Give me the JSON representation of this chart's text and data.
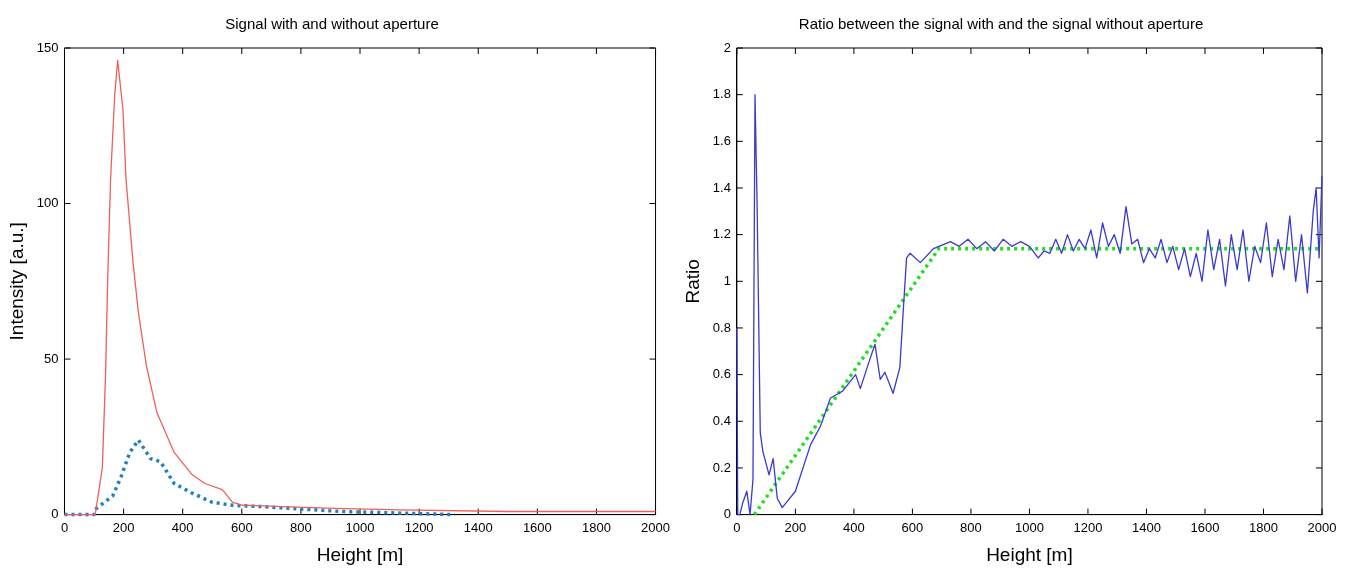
{
  "chart_data": [
    {
      "type": "line",
      "title": "Signal with and without aperture",
      "xlabel": "Height [m]",
      "ylabel": "Intensity [a.u.]",
      "xlim": [
        0,
        2000
      ],
      "ylim": [
        0,
        150
      ],
      "xticks": [
        0,
        200,
        400,
        600,
        800,
        1000,
        1200,
        1400,
        1600,
        1800,
        2000
      ],
      "yticks": [
        0,
        50,
        100,
        150
      ],
      "grid": false,
      "legend": false,
      "marker": "none",
      "series": [
        {
          "color": "#f0605a",
          "line_style": "solid",
          "x": [
            0,
            100,
            104,
            128,
            139,
            146,
            156,
            170,
            180,
            198,
            208,
            232,
            250,
            277,
            312,
            371,
            430,
            475,
            534,
            568,
            603,
            915,
            1133,
            1500,
            2000
          ],
          "values": [
            0,
            0,
            0,
            15,
            45,
            75,
            108,
            135,
            146,
            130,
            108,
            81,
            65,
            48,
            33,
            20,
            13,
            10,
            8,
            4,
            3,
            2,
            1.5,
            1,
            1
          ]
        },
        {
          "color": "#1f7fc4",
          "line_style": "dotted",
          "x": [
            0,
            100,
            108,
            163,
            191,
            221,
            250,
            291,
            325,
            371,
            430,
            499,
            568,
            683,
            936,
            1320
          ],
          "values": [
            0,
            0,
            2,
            6,
            12,
            20,
            24,
            18,
            17,
            10,
            7,
            4,
            3,
            2.5,
            1,
            0
          ]
        }
      ]
    },
    {
      "type": "line",
      "title": "Ratio between the signal with and the signal without aperture",
      "xlabel": "Height [m]",
      "ylabel": "Ratio",
      "xlim": [
        0,
        2000
      ],
      "ylim": [
        0,
        2
      ],
      "xticks": [
        0,
        200,
        400,
        600,
        800,
        1000,
        1200,
        1400,
        1600,
        1800,
        2000
      ],
      "yticks": [
        0,
        0.2,
        0.4,
        0.6,
        0.8,
        1,
        1.2,
        1.4,
        1.6,
        1.8,
        2
      ],
      "grid": false,
      "legend": false,
      "marker": "none",
      "series": [
        {
          "color": "#3a3ad0",
          "line_style": "solid",
          "x": [
            0,
            3,
            10,
            20,
            34,
            45,
            55,
            62,
            69,
            80,
            89,
            110,
            124,
            138,
            155,
            200,
            252,
            286,
            320,
            362,
            406,
            422,
            453,
            472,
            490,
            506,
            534,
            557,
            569,
            580,
            592,
            627,
            672,
            730,
            760,
            790,
            820,
            850,
            880,
            910,
            940,
            970,
            1000,
            1030,
            1050,
            1070,
            1090,
            1110,
            1130,
            1150,
            1170,
            1190,
            1210,
            1230,
            1250,
            1270,
            1290,
            1310,
            1330,
            1350,
            1370,
            1390,
            1410,
            1430,
            1450,
            1470,
            1490,
            1510,
            1530,
            1550,
            1570,
            1590,
            1610,
            1630,
            1650,
            1670,
            1690,
            1710,
            1730,
            1750,
            1770,
            1790,
            1810,
            1830,
            1850,
            1870,
            1890,
            1910,
            1930,
            1950,
            1970,
            1980,
            1990,
            2000
          ],
          "values": [
            0.8,
            0,
            0,
            0.05,
            0.1,
            0,
            0.15,
            1.8,
            1.34,
            0.35,
            0.27,
            0.17,
            0.24,
            0.07,
            0.03,
            0.1,
            0.3,
            0.38,
            0.5,
            0.53,
            0.6,
            0.54,
            0.66,
            0.73,
            0.58,
            0.61,
            0.52,
            0.63,
            0.88,
            1.1,
            1.12,
            1.08,
            1.14,
            1.17,
            1.15,
            1.18,
            1.14,
            1.17,
            1.13,
            1.18,
            1.15,
            1.17,
            1.15,
            1.1,
            1.13,
            1.12,
            1.18,
            1.12,
            1.2,
            1.13,
            1.18,
            1.14,
            1.22,
            1.1,
            1.25,
            1.15,
            1.2,
            1.12,
            1.32,
            1.16,
            1.18,
            1.08,
            1.14,
            1.1,
            1.18,
            1.08,
            1.15,
            1.05,
            1.14,
            1.02,
            1.12,
            1,
            1.22,
            1.05,
            1.18,
            0.98,
            1.2,
            1.05,
            1.22,
            1,
            1.15,
            1.08,
            1.25,
            1.02,
            1.18,
            1.05,
            1.28,
            1,
            1.2,
            0.95,
            1.3,
            1.4,
            1.1,
            1.45
          ]
        },
        {
          "color": "#22dd22",
          "line_style": "dotted",
          "x": [
            60,
            690,
            2000
          ],
          "values": [
            0,
            1.14,
            1.14
          ]
        }
      ]
    }
  ]
}
